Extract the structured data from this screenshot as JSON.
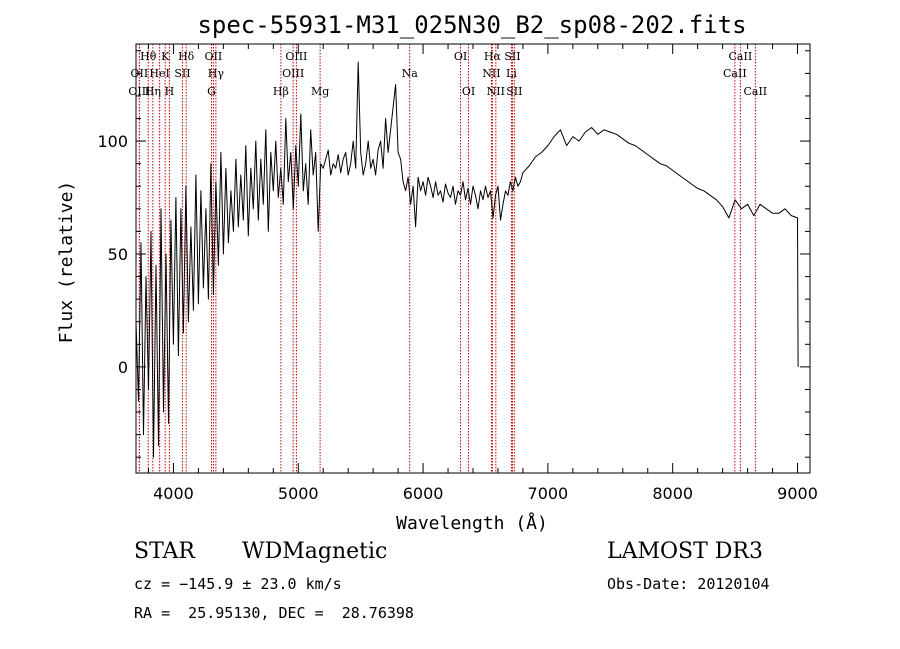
{
  "chart_data": {
    "type": "line",
    "title": "spec-55931-M31_025N30_B2_sp08-202.fits",
    "xlabel": "Wavelength (Å)",
    "ylabel": "Flux (relative)",
    "xlim": [
      3700,
      9100
    ],
    "ylim": [
      -47,
      143
    ],
    "x_ticks": [
      4000,
      5000,
      6000,
      7000,
      8000,
      9000
    ],
    "x_tick_labels": [
      "4000",
      "5000",
      "6000",
      "7000",
      "8000",
      "9000"
    ],
    "y_ticks": [
      0,
      50,
      100
    ],
    "y_tick_labels": [
      "0",
      "50",
      "100"
    ],
    "series": [
      {
        "name": "flux",
        "x": [
          3700,
          3720,
          3740,
          3760,
          3780,
          3800,
          3820,
          3840,
          3860,
          3880,
          3900,
          3920,
          3940,
          3960,
          3980,
          4000,
          4020,
          4040,
          4060,
          4080,
          4100,
          4120,
          4140,
          4160,
          4180,
          4200,
          4220,
          4240,
          4260,
          4280,
          4300,
          4320,
          4340,
          4360,
          4380,
          4400,
          4420,
          4440,
          4460,
          4480,
          4500,
          4520,
          4540,
          4560,
          4580,
          4600,
          4620,
          4640,
          4660,
          4680,
          4700,
          4720,
          4740,
          4760,
          4780,
          4800,
          4820,
          4840,
          4860,
          4880,
          4900,
          4920,
          4940,
          4960,
          4980,
          5000,
          5020,
          5040,
          5060,
          5080,
          5100,
          5120,
          5140,
          5160,
          5180,
          5200,
          5220,
          5240,
          5260,
          5280,
          5300,
          5320,
          5340,
          5360,
          5380,
          5400,
          5420,
          5440,
          5460,
          5480,
          5500,
          5520,
          5540,
          5560,
          5580,
          5600,
          5620,
          5640,
          5660,
          5680,
          5700,
          5720,
          5740,
          5760,
          5780,
          5800,
          5820,
          5840,
          5860,
          5880,
          5900,
          5920,
          5940,
          5960,
          5980,
          6000,
          6020,
          6040,
          6060,
          6080,
          6100,
          6120,
          6140,
          6160,
          6180,
          6200,
          6220,
          6240,
          6260,
          6280,
          6300,
          6320,
          6340,
          6360,
          6380,
          6400,
          6420,
          6440,
          6460,
          6480,
          6500,
          6520,
          6540,
          6560,
          6580,
          6600,
          6620,
          6640,
          6660,
          6680,
          6700,
          6720,
          6740,
          6760,
          6780,
          6800,
          6850,
          6900,
          6950,
          7000,
          7050,
          7100,
          7150,
          7200,
          7250,
          7300,
          7350,
          7400,
          7450,
          7500,
          7550,
          7600,
          7650,
          7700,
          7750,
          7800,
          7850,
          7900,
          7950,
          8000,
          8050,
          8100,
          8150,
          8200,
          8250,
          8300,
          8350,
          8400,
          8450,
          8500,
          8550,
          8600,
          8650,
          8700,
          8750,
          8800,
          8850,
          8900,
          8950,
          9000,
          9005
        ],
        "y": [
          20,
          -15,
          55,
          -30,
          40,
          -10,
          60,
          -40,
          45,
          -35,
          70,
          -20,
          50,
          -25,
          65,
          10,
          75,
          5,
          70,
          15,
          80,
          20,
          62,
          25,
          85,
          28,
          78,
          35,
          70,
          30,
          90,
          32,
          82,
          45,
          95,
          50,
          88,
          55,
          78,
          60,
          92,
          62,
          85,
          65,
          98,
          58,
          88,
          70,
          100,
          65,
          92,
          72,
          105,
          60,
          95,
          78,
          100,
          75,
          88,
          72,
          110,
          82,
          95,
          70,
          98,
          80,
          112,
          78,
          90,
          72,
          105,
          85,
          95,
          60,
          90,
          88,
          92,
          96,
          85,
          90,
          88,
          94,
          86,
          92,
          95,
          85,
          90,
          100,
          88,
          135,
          95,
          85,
          90,
          100,
          88,
          92,
          85,
          96,
          100,
          88,
          110,
          95,
          105,
          115,
          125,
          95,
          92,
          82,
          78,
          84,
          72,
          80,
          62,
          84,
          78,
          82,
          76,
          84,
          80,
          75,
          82,
          76,
          78,
          73,
          81,
          77,
          75,
          80,
          72,
          78,
          76,
          82,
          74,
          79,
          72,
          80,
          76,
          70,
          78,
          74,
          80,
          75,
          78,
          66,
          76,
          80,
          65,
          72,
          78,
          76,
          82,
          78,
          84,
          80,
          82,
          86,
          89,
          93,
          95,
          98,
          102,
          105,
          98,
          102,
          100,
          104,
          106,
          103,
          105,
          104,
          103,
          101,
          99,
          98,
          96,
          94,
          92,
          90,
          89,
          87,
          85,
          83,
          81,
          79,
          78,
          76,
          74,
          71,
          66,
          74,
          70,
          72,
          67,
          72,
          70,
          68,
          68,
          70,
          67,
          66,
          0
        ]
      }
    ],
    "annotations": [
      {
        "label": "Hθ",
        "x": 3798,
        "row": 0
      },
      {
        "label": "K",
        "x": 3934,
        "row": 0
      },
      {
        "label": "Hδ",
        "x": 4102,
        "row": 0
      },
      {
        "label": "OII",
        "x": 4320,
        "row": 0
      },
      {
        "label": "OIII",
        "x": 4985,
        "row": 0
      },
      {
        "label": "OI",
        "x": 6300,
        "row": 0
      },
      {
        "label": "Hα",
        "x": 6555,
        "row": 0
      },
      {
        "label": "SII",
        "x": 6716,
        "row": 0
      },
      {
        "label": "CaII",
        "x": 8542,
        "row": 0
      },
      {
        "label": "OII",
        "x": 3727,
        "row": 1
      },
      {
        "label": "HeI",
        "x": 3889,
        "row": 1
      },
      {
        "label": "SII",
        "x": 4072,
        "row": 1
      },
      {
        "label": "Hγ",
        "x": 4340,
        "row": 1
      },
      {
        "label": "OIII",
        "x": 4959,
        "row": 1
      },
      {
        "label": "Na",
        "x": 5893,
        "row": 1
      },
      {
        "label": "NII",
        "x": 6548,
        "row": 1
      },
      {
        "label": "Li",
        "x": 6708,
        "row": 1
      },
      {
        "label": "CaII",
        "x": 8498,
        "row": 1
      },
      {
        "label": "OIII",
        "x": 3727,
        "row": 2
      },
      {
        "label": "Hη",
        "x": 3835,
        "row": 2
      },
      {
        "label": "H",
        "x": 3968,
        "row": 2
      },
      {
        "label": "G",
        "x": 4305,
        "row": 2
      },
      {
        "label": "Hβ",
        "x": 4861,
        "row": 2
      },
      {
        "label": "Mg",
        "x": 5175,
        "row": 2
      },
      {
        "label": "OI",
        "x": 6364,
        "row": 2
      },
      {
        "label": "NII",
        "x": 6583,
        "row": 2
      },
      {
        "label": "SII",
        "x": 6731,
        "row": 2
      },
      {
        "label": "CaII",
        "x": 8662,
        "row": 2
      }
    ]
  },
  "info": {
    "object_class": "STAR",
    "subclass": "WDMagnetic",
    "survey": "LAMOST DR3",
    "redshift_line": "cz = −145.9 ± 23.0 km/s",
    "obs_date": "Obs-Date: 20120104",
    "coords": "RA =  25.95130, DEC =  28.76398"
  },
  "colors": {
    "line_marker": "#c80000",
    "spectrum": "#000000",
    "axes": "#000000"
  }
}
